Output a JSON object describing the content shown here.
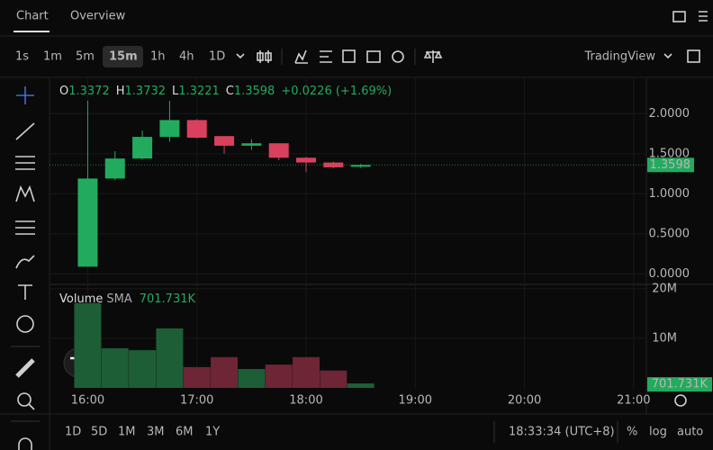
{
  "tabs": [
    "Chart",
    "Overview"
  ],
  "intervals": [
    "1s",
    "1m",
    "5m",
    "15m",
    "1h",
    "4h",
    "1D"
  ],
  "provider": "TradingView",
  "ranges": [
    "1D",
    "5D",
    "1M",
    "3M",
    "6M",
    "1Y"
  ],
  "clock": "18:33:34 (UTC+8)",
  "scale_options": [
    "%",
    "log",
    "auto"
  ],
  "chart_data": {
    "type": "candlestick",
    "legend": {
      "labels": [
        "O",
        "H",
        "L",
        "C"
      ],
      "values": [
        1.3372,
        1.3732,
        1.3221,
        1.3598
      ],
      "change": "+0.0226 (+1.69%)"
    },
    "x": [
      "16:00",
      "16:15",
      "16:30",
      "16:45",
      "17:00",
      "17:15",
      "17:30",
      "17:45",
      "18:00",
      "18:15",
      "18:30"
    ],
    "open": [
      0.09,
      1.19,
      1.44,
      1.71,
      1.92,
      1.72,
      1.6,
      1.63,
      1.45,
      1.39,
      1.3372
    ],
    "high": [
      2.16,
      1.53,
      1.79,
      2.16,
      1.93,
      1.72,
      1.68,
      1.63,
      1.46,
      1.4,
      1.3732
    ],
    "low": [
      0.09,
      1.17,
      1.43,
      1.65,
      1.69,
      1.5,
      1.55,
      1.42,
      1.27,
      1.32,
      1.3221
    ],
    "close": [
      1.19,
      1.44,
      1.71,
      1.92,
      1.7,
      1.6,
      1.63,
      1.45,
      1.39,
      1.33,
      1.3598
    ],
    "up_color": "#22ab5e",
    "down_color": "#d9405e",
    "ylim": [
      -0.12,
      2.43
    ],
    "yticks": [
      {
        "value": 0,
        "label": "0.0000"
      },
      {
        "value": 0.5,
        "label": "0.5000"
      },
      {
        "value": 1,
        "label": "1.0000"
      },
      {
        "value": 1.5,
        "label": "1.5000"
      },
      {
        "value": 2,
        "label": "2.0000"
      }
    ],
    "last_price": 1.3598,
    "xlim": [
      "15:39",
      "21:07"
    ],
    "xticks": [
      "16:00",
      "17:00",
      "18:00",
      "19:00",
      "20:00",
      "21:00"
    ],
    "grid": true,
    "volume": {
      "name": "Volume",
      "sma_name": "SMA",
      "sma": 701731,
      "sma_label": "701.731K",
      "values": [
        17100000,
        8000000,
        7600000,
        12000000,
        4200000,
        6200000,
        3800000,
        4700000,
        6200000,
        3500000,
        900000
      ],
      "up_color": "#1d5e36",
      "down_color": "#6e2536",
      "ylim": [
        0,
        20500000
      ],
      "yticks": [
        {
          "value": 10000000,
          "label": "10M"
        },
        {
          "value": 20000000,
          "label": "20M"
        }
      ]
    }
  }
}
